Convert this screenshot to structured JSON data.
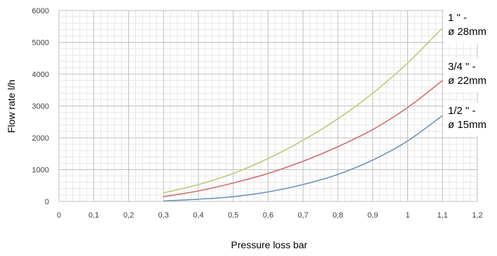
{
  "chart_data": {
    "type": "line",
    "title": "",
    "xlabel": "Pressure loss bar",
    "ylabel": "Flow rate l/h",
    "xlim": [
      0,
      1.2
    ],
    "ylim": [
      0,
      6000
    ],
    "x_ticks": [
      "0",
      "0,1",
      "0,2",
      "0,3",
      "0,4",
      "0,5",
      "0,6",
      "0,7",
      "0,8",
      "0,9",
      "1",
      "1,1",
      "1,2"
    ],
    "y_ticks": [
      "0",
      "1000",
      "2000",
      "3000",
      "4000",
      "5000",
      "6000"
    ],
    "grid": true,
    "legend_position": "right",
    "series": [
      {
        "name": "1 \" - ø 28mm",
        "label_lines": [
          "1 \" -",
          "ø 28mm"
        ],
        "color": "#b5cc7a",
        "x": [
          0.3,
          0.4,
          0.5,
          0.6,
          0.7,
          0.8,
          0.9,
          1.0,
          1.1
        ],
        "y": [
          270,
          530,
          880,
          1350,
          1920,
          2600,
          3400,
          4350,
          5450
        ]
      },
      {
        "name": "3/4 \" - ø 22mm",
        "label_lines": [
          "3/4 \" -",
          "ø 22mm"
        ],
        "color": "#d06d6a",
        "x": [
          0.3,
          0.4,
          0.5,
          0.6,
          0.7,
          0.8,
          0.9,
          1.0,
          1.1
        ],
        "y": [
          150,
          330,
          580,
          880,
          1260,
          1720,
          2260,
          2950,
          3800
        ]
      },
      {
        "name": "1/2 \" - ø 15mm",
        "label_lines": [
          "1/2 \" -",
          "ø 15mm"
        ],
        "color": "#6f93c0",
        "x": [
          0.3,
          0.4,
          0.5,
          0.6,
          0.7,
          0.8,
          0.9,
          1.0,
          1.1
        ],
        "y": [
          15,
          70,
          150,
          300,
          530,
          850,
          1300,
          1900,
          2700
        ]
      }
    ]
  }
}
